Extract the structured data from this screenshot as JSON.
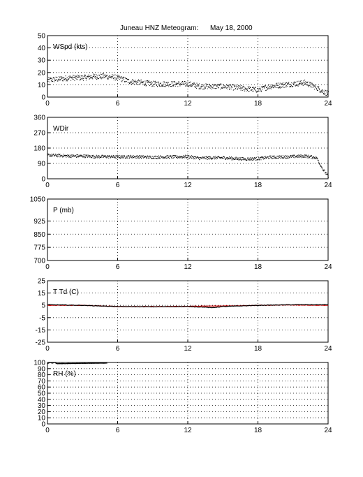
{
  "figure": {
    "title": "Juneau HNZ Meteogram:",
    "date": "May 18, 2000"
  },
  "chart_data": [
    {
      "type": "scatter",
      "label": "WSpd (kts)",
      "xlim": [
        0,
        24
      ],
      "ylim": [
        0,
        50
      ],
      "xticks": [
        0,
        6,
        12,
        18,
        24
      ],
      "yticks": [
        0,
        10,
        20,
        30,
        40,
        50
      ],
      "grid": true,
      "series": [
        {
          "color": "#000000",
          "x": [
            0,
            1,
            2,
            3,
            4,
            5,
            6,
            7,
            8,
            9,
            10,
            11,
            12,
            13,
            14,
            15,
            16,
            17,
            18,
            19,
            20,
            21,
            22,
            23,
            23.5,
            24
          ],
          "y": [
            14,
            15,
            16,
            16,
            17,
            17,
            16,
            13,
            12,
            11,
            11,
            11,
            11,
            9,
            9,
            9,
            8,
            7,
            6,
            9,
            10,
            11,
            12,
            8,
            5,
            3
          ]
        }
      ]
    },
    {
      "type": "scatter",
      "label": "WDir",
      "xlim": [
        0,
        24
      ],
      "ylim": [
        0,
        360
      ],
      "xticks": [
        0,
        6,
        12,
        18,
        24
      ],
      "yticks": [
        0,
        90,
        180,
        270,
        360
      ],
      "grid": true,
      "series": [
        {
          "color": "#000000",
          "x": [
            0,
            1,
            2,
            3,
            4,
            5,
            6,
            7,
            8,
            9,
            10,
            11,
            12,
            13,
            14,
            15,
            16,
            17,
            18,
            19,
            20,
            21,
            22,
            23,
            23.5,
            24
          ],
          "y": [
            140,
            138,
            135,
            135,
            132,
            132,
            130,
            132,
            130,
            128,
            130,
            130,
            132,
            122,
            125,
            125,
            120,
            118,
            120,
            128,
            130,
            132,
            135,
            125,
            60,
            15
          ]
        }
      ]
    },
    {
      "type": "line",
      "label": "P (mb)",
      "xlim": [
        0,
        24
      ],
      "ylim": [
        700,
        1050
      ],
      "xticks": [
        0,
        6,
        12,
        18,
        24
      ],
      "yticks": [
        700,
        775,
        850,
        925,
        1050
      ],
      "grid": true,
      "series": []
    },
    {
      "type": "line",
      "label": "T Td (C)",
      "xlim": [
        0,
        24
      ],
      "ylim": [
        -25,
        25
      ],
      "xticks": [
        0,
        6,
        12,
        18,
        24
      ],
      "yticks": [
        -25,
        -15,
        -5,
        5,
        15,
        25
      ],
      "grid": true,
      "series": [
        {
          "color": "#cc0000",
          "x": [
            0,
            3,
            6,
            9,
            12,
            15,
            18,
            21,
            24
          ],
          "y": [
            5,
            5,
            4,
            4,
            4.2,
            4.5,
            5,
            5.3,
            5
          ]
        },
        {
          "color": "#000000",
          "x": [
            0,
            3,
            6,
            9,
            12,
            13.5,
            14,
            15,
            18,
            21,
            24
          ],
          "y": [
            5.5,
            5,
            4,
            3.8,
            4,
            3.5,
            3,
            4,
            5,
            5.5,
            5.5
          ]
        }
      ]
    },
    {
      "type": "line",
      "label": "RH (%)",
      "xlim": [
        0,
        24
      ],
      "ylim": [
        0,
        100
      ],
      "xticks": [
        0,
        6,
        12,
        18,
        24
      ],
      "yticks": [
        0,
        10,
        20,
        30,
        40,
        50,
        60,
        70,
        80,
        90,
        100
      ],
      "grid": true,
      "series": [
        {
          "color": "#000000",
          "x": [
            0,
            0.2,
            0.4,
            0.6,
            0.8,
            5.0,
            5.1
          ],
          "y": [
            98,
            100,
            99,
            100,
            98,
            99,
            99
          ]
        }
      ]
    }
  ]
}
